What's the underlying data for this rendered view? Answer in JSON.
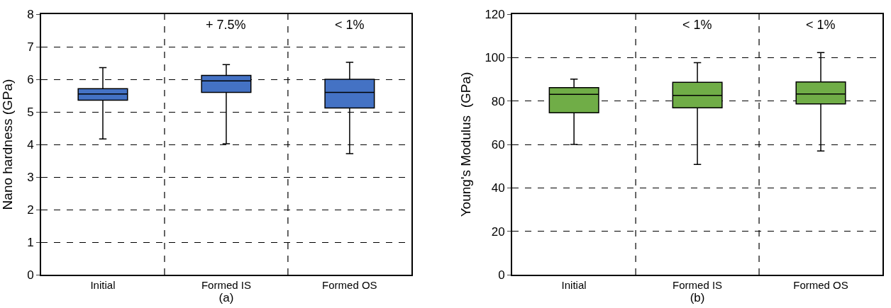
{
  "chart_data": [
    {
      "type": "box",
      "xlabel": "(a)",
      "ylabel": "Nano hardness (GPa)",
      "categories": [
        "Initial",
        "Formed IS",
        "Formed OS"
      ],
      "ylim": [
        0,
        8
      ],
      "yticks": [
        0,
        1,
        2,
        3,
        4,
        5,
        6,
        7,
        8
      ],
      "grid": true,
      "series": [
        {
          "color": "#4472c4",
          "boxes": [
            {
              "low": 4.17,
              "q1": 5.36,
              "median": 5.55,
              "q3": 5.71,
              "high": 6.36
            },
            {
              "low": 4.02,
              "q1": 5.6,
              "median": 5.95,
              "q3": 6.12,
              "high": 6.45
            },
            {
              "low": 3.72,
              "q1": 5.12,
              "median": 5.6,
              "q3": 6.0,
              "high": 6.52
            }
          ]
        }
      ],
      "annotations": [
        "+ 7.5%",
        "< 1%"
      ]
    },
    {
      "type": "box",
      "xlabel": "(b)",
      "ylabel": "Young's Modulus  (GPa)",
      "categories": [
        "Initial",
        "Formed IS",
        "Formed OS"
      ],
      "ylim": [
        0,
        120
      ],
      "yticks": [
        0,
        20,
        40,
        60,
        80,
        100,
        120
      ],
      "grid": true,
      "series": [
        {
          "color": "#70ad47",
          "boxes": [
            {
              "low": 60,
              "q1": 74.6,
              "median": 83.1,
              "q3": 86.2,
              "high": 90.1
            },
            {
              "low": 50.8,
              "q1": 76.9,
              "median": 82.6,
              "q3": 88.6,
              "high": 97.7
            },
            {
              "low": 57.0,
              "q1": 78.7,
              "median": 83.2,
              "q3": 88.8,
              "high": 102.3
            }
          ]
        }
      ],
      "annotations": [
        "< 1%",
        "< 1%"
      ]
    }
  ]
}
